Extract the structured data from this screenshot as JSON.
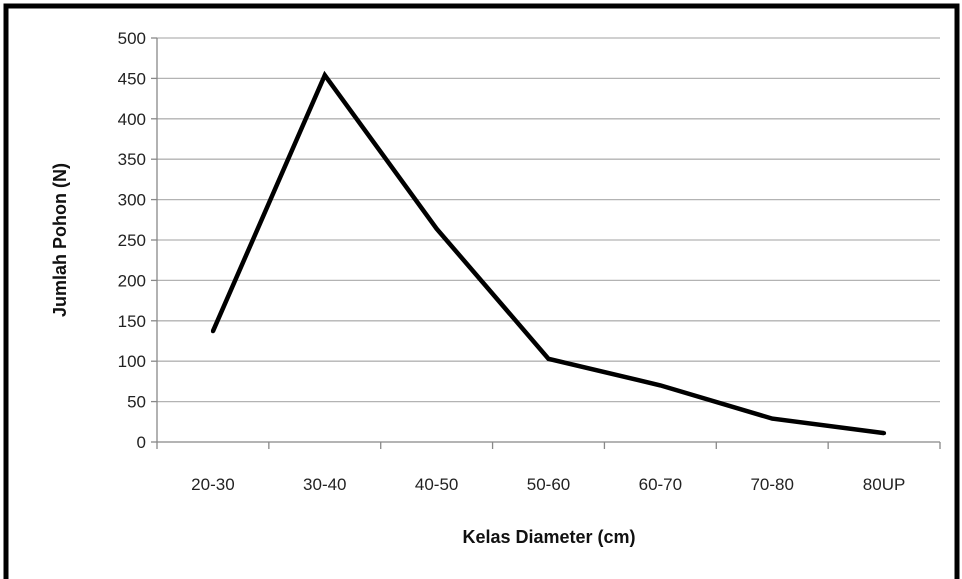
{
  "chart_data": {
    "type": "line",
    "title": "",
    "xlabel": "Kelas Diameter (cm)",
    "ylabel": "Jumlah Pohon (N)",
    "categories": [
      "20-30",
      "30-40",
      "40-50",
      "50-60",
      "60-70",
      "70-80",
      "80UP"
    ],
    "series": [
      {
        "values": [
          137,
          454,
          264,
          103,
          70,
          29,
          11
        ]
      }
    ],
    "ylim": [
      0,
      500
    ],
    "yticks": [
      "0",
      "50",
      "100",
      "150",
      "200",
      "250",
      "300",
      "350",
      "400",
      "450",
      "500"
    ],
    "grid": true,
    "legend": "none",
    "line_color": "#000000",
    "grid_color": "#b3b3b3",
    "frame_color": "#000000"
  }
}
